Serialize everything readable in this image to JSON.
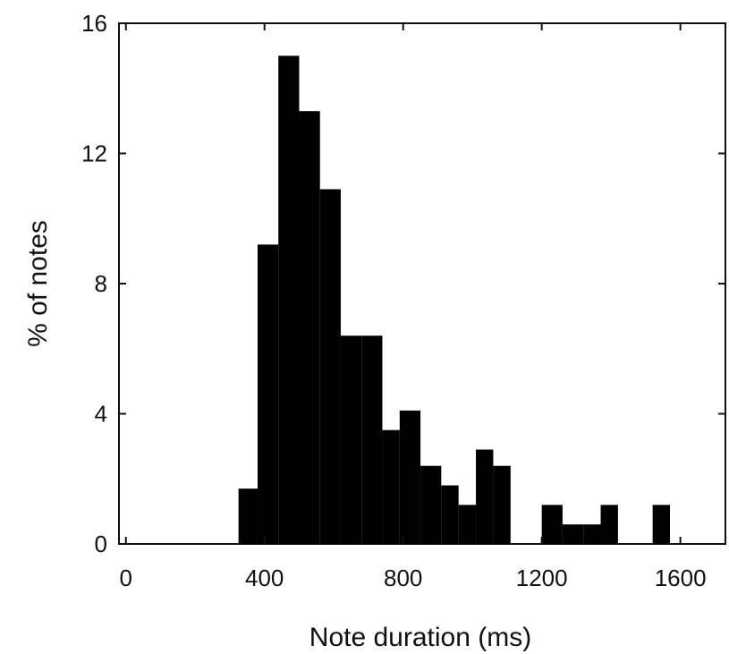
{
  "chart_data": {
    "type": "bar",
    "title": "",
    "xlabel": "Note duration (ms)",
    "ylabel": "% of notes",
    "xlim": [
      -20,
      1730
    ],
    "ylim": [
      0,
      16
    ],
    "xticks": [
      0,
      400,
      800,
      1200,
      1600
    ],
    "yticks": [
      0,
      4,
      8,
      12,
      16
    ],
    "grid": false,
    "legend": "none",
    "bin_width": 60,
    "series": [
      {
        "bins": [
          {
            "x0": 325,
            "x1": 380,
            "value": 1.7
          },
          {
            "x0": 380,
            "x1": 440,
            "value": 9.2
          },
          {
            "x0": 440,
            "x1": 500,
            "value": 15.0
          },
          {
            "x0": 500,
            "x1": 560,
            "value": 13.3
          },
          {
            "x0": 560,
            "x1": 620,
            "value": 10.9
          },
          {
            "x0": 620,
            "x1": 680,
            "value": 6.4
          },
          {
            "x0": 680,
            "x1": 740,
            "value": 6.4
          },
          {
            "x0": 740,
            "x1": 790,
            "value": 3.5
          },
          {
            "x0": 790,
            "x1": 850,
            "value": 4.1
          },
          {
            "x0": 850,
            "x1": 910,
            "value": 2.4
          },
          {
            "x0": 910,
            "x1": 960,
            "value": 1.8
          },
          {
            "x0": 960,
            "x1": 1010,
            "value": 1.2
          },
          {
            "x0": 1010,
            "x1": 1060,
            "value": 2.9
          },
          {
            "x0": 1060,
            "x1": 1110,
            "value": 2.4
          },
          {
            "x0": 1200,
            "x1": 1260,
            "value": 1.2
          },
          {
            "x0": 1260,
            "x1": 1320,
            "value": 0.6
          },
          {
            "x0": 1320,
            "x1": 1370,
            "value": 0.6
          },
          {
            "x0": 1370,
            "x1": 1420,
            "value": 1.2
          },
          {
            "x0": 1520,
            "x1": 1570,
            "value": 1.2
          }
        ]
      }
    ]
  },
  "colors": {
    "bar": "#000000",
    "axis": "#111111",
    "background": "#ffffff"
  }
}
